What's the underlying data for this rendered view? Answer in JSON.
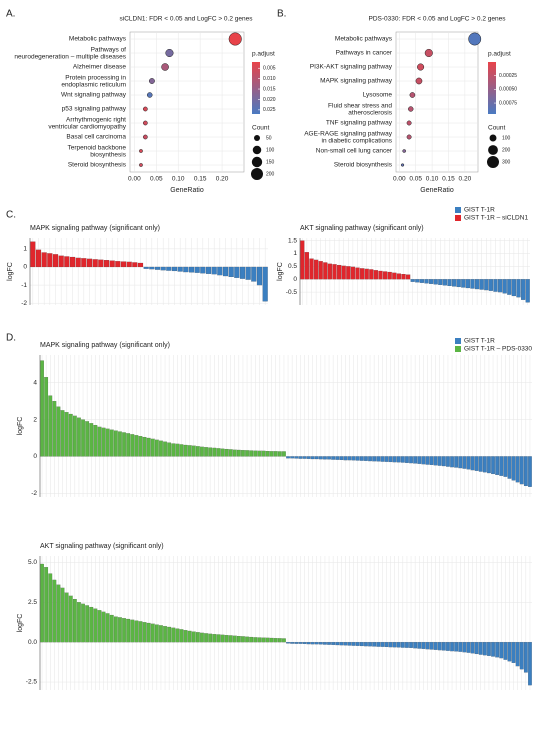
{
  "chart_data": [
    {
      "type": "dot",
      "panel_label": "A.",
      "title": "siCLDN1: FDR < 0.05 and LogFC > 0.2 genes",
      "categories": [
        "Metabolic pathways",
        "Pathways of\nneurodegeneration – multiple diseases",
        "Alzheimer disease",
        "Protein processing in\nendoplasmic reticulum",
        "Wnt signaling pathway",
        "p53 signaling pathway",
        "Arrhythmogenic right\nventricular cardiomyopathy",
        "Basal cell carcinoma",
        "Terpenoid backbone\nbiosynthesis",
        "Steroid biosynthesis"
      ],
      "values": [
        0.23,
        0.08,
        0.07,
        0.04,
        0.035,
        0.025,
        0.025,
        0.025,
        0.015,
        0.015
      ],
      "count": [
        220,
        80,
        70,
        40,
        35,
        25,
        25,
        25,
        15,
        15
      ],
      "p_adjust": [
        0.002,
        0.02,
        0.012,
        0.018,
        0.025,
        0.005,
        0.006,
        0.007,
        0.005,
        0.006
      ],
      "x_label": "GeneRatio",
      "xlim": [
        -0.01,
        0.25
      ],
      "xticks": [
        {
          "value": 0,
          "label": "0.00"
        },
        0.05,
        {
          "value": 0.1,
          "label": "0.10"
        },
        0.15,
        {
          "value": 0.2,
          "label": "0.20"
        }
      ],
      "color_title": "p.adjust",
      "plim": [
        0.002,
        0.027
      ],
      "low_color": "#e8434a",
      "high_color": "#4a7ac2",
      "pticks": [
        0.005,
        {
          "value": 0.01,
          "label": "0.010"
        },
        0.015,
        {
          "value": 0.02,
          "label": "0.020"
        },
        0.025
      ],
      "size_title": "Count",
      "size_ticks": [
        50,
        100,
        150,
        200
      ]
    },
    {
      "type": "dot",
      "panel_label": "B.",
      "title": "PDS-0330: FDR < 0.05 and LogFC > 0.2 genes",
      "categories": [
        "Metabolic pathways",
        "Pathways in cancer",
        "PI3K-AKT signaling pathway",
        "MAPK signaling pathway",
        "Lysosome",
        "Fluid shear stress and\natherosclerosis",
        "TNF signaling pathway",
        "AGE-RAGE signaling pathway\nin diabetic complications",
        "Non-small cell lung cancer",
        "Steroid biosynthesis"
      ],
      "values": [
        0.23,
        0.09,
        0.065,
        0.06,
        0.04,
        0.035,
        0.03,
        0.03,
        0.015,
        0.01
      ],
      "count": [
        320,
        120,
        90,
        80,
        55,
        50,
        40,
        40,
        20,
        15
      ],
      "p_adjust": [
        0.0009,
        0.0002,
        0.00015,
        0.0002,
        0.0003,
        0.0003,
        0.00025,
        0.0003,
        0.0006,
        0.0008
      ],
      "x_label": "GeneRatio",
      "xlim": [
        -0.01,
        0.24
      ],
      "xticks": [
        {
          "value": 0,
          "label": "0.00"
        },
        0.05,
        {
          "value": 0.1,
          "label": "0.10"
        },
        0.15,
        {
          "value": 0.2,
          "label": "0.20"
        }
      ],
      "color_title": "p.adjust",
      "plim": [
        0,
        0.00095
      ],
      "low_color": "#e8434a",
      "high_color": "#4a7ac2",
      "pticks": [
        0.00025,
        {
          "value": 0.0005,
          "label": "0.00050"
        },
        0.00075
      ],
      "size_title": "Count",
      "size_ticks": [
        100,
        200,
        300
      ]
    },
    {
      "type": "bar",
      "panel_label": "C.",
      "title": "MAPK signaling pathway (significant only)",
      "y_label": "logFC",
      "up_color": "#e0262c",
      "down_color": "#3b7fc0",
      "values": [
        1.4,
        0.95,
        0.8,
        0.75,
        0.7,
        0.62,
        0.58,
        0.55,
        0.5,
        0.48,
        0.45,
        0.42,
        0.4,
        0.38,
        0.35,
        0.32,
        0.3,
        0.28,
        0.25,
        0.22,
        -0.1,
        -0.12,
        -0.15,
        -0.18,
        -0.2,
        -0.22,
        -0.25,
        -0.28,
        -0.3,
        -0.32,
        -0.35,
        -0.38,
        -0.4,
        -0.45,
        -0.5,
        -0.55,
        -0.6,
        -0.65,
        -0.7,
        -0.8,
        -1.0,
        -1.9
      ],
      "ylim": [
        -2.1,
        1.6
      ],
      "yticks": [
        -2,
        -1,
        0,
        1
      ],
      "grid": true
    },
    {
      "type": "bar",
      "title": "AKT signaling pathway (significant only)",
      "y_label": "logFC",
      "up_color": "#e0262c",
      "down_color": "#3b7fc0",
      "legend": [
        {
          "name": "GIST T-1R",
          "color": "#3b7fc0"
        },
        {
          "name": "GIST T-1R – siCLDN1",
          "color": "#e0262c"
        }
      ],
      "values": [
        1.5,
        1.05,
        0.8,
        0.75,
        0.7,
        0.65,
        0.6,
        0.58,
        0.55,
        0.52,
        0.5,
        0.48,
        0.45,
        0.42,
        0.4,
        0.38,
        0.35,
        0.32,
        0.3,
        0.28,
        0.25,
        0.22,
        0.2,
        0.18,
        -0.1,
        -0.12,
        -0.14,
        -0.16,
        -0.18,
        -0.2,
        -0.22,
        -0.24,
        -0.26,
        -0.28,
        -0.3,
        -0.32,
        -0.34,
        -0.36,
        -0.38,
        -0.4,
        -0.42,
        -0.45,
        -0.48,
        -0.5,
        -0.55,
        -0.6,
        -0.65,
        -0.7,
        -0.8,
        -0.9
      ],
      "ylim": [
        -1,
        1.6
      ],
      "yticks": [
        -0.5,
        0,
        0.5,
        1,
        1.5
      ],
      "grid": true
    },
    {
      "type": "bar",
      "panel_label": "D.",
      "title": "MAPK signaling pathway (significant only)",
      "y_label": "logFC",
      "up_color": "#5bb544",
      "down_color": "#3b7fc0",
      "legend": [
        {
          "name": "GIST T-1R",
          "color": "#3b7fc0"
        },
        {
          "name": "GIST T-1R – PDS-0330",
          "color": "#5bb544"
        }
      ],
      "values": [
        5.2,
        4.3,
        3.3,
        3.0,
        2.7,
        2.5,
        2.4,
        2.3,
        2.2,
        2.1,
        2.0,
        1.9,
        1.8,
        1.7,
        1.6,
        1.55,
        1.5,
        1.45,
        1.4,
        1.35,
        1.3,
        1.25,
        1.2,
        1.15,
        1.1,
        1.05,
        1.0,
        0.95,
        0.9,
        0.85,
        0.8,
        0.75,
        0.7,
        0.68,
        0.65,
        0.62,
        0.6,
        0.58,
        0.55,
        0.52,
        0.5,
        0.48,
        0.46,
        0.44,
        0.42,
        0.4,
        0.38,
        0.36,
        0.35,
        0.34,
        0.33,
        0.32,
        0.31,
        0.3,
        0.3,
        0.29,
        0.28,
        0.28,
        0.27,
        0.27,
        -0.1,
        -0.1,
        -0.11,
        -0.12,
        -0.12,
        -0.13,
        -0.14,
        -0.14,
        -0.15,
        -0.16,
        -0.16,
        -0.17,
        -0.18,
        -0.19,
        -0.2,
        -0.2,
        -0.21,
        -0.22,
        -0.23,
        -0.24,
        -0.25,
        -0.26,
        -0.27,
        -0.28,
        -0.29,
        -0.3,
        -0.31,
        -0.32,
        -0.33,
        -0.35,
        -0.36,
        -0.38,
        -0.4,
        -0.42,
        -0.44,
        -0.46,
        -0.48,
        -0.5,
        -0.52,
        -0.55,
        -0.58,
        -0.6,
        -0.63,
        -0.66,
        -0.7,
        -0.74,
        -0.78,
        -0.82,
        -0.86,
        -0.9,
        -0.95,
        -1.0,
        -1.05,
        -1.1,
        -1.2,
        -1.3,
        -1.4,
        -1.5,
        -1.6,
        -1.65
      ],
      "ylim": [
        -2.2,
        5.5
      ],
      "yticks": [
        -2,
        0,
        2,
        4
      ],
      "grid": true
    },
    {
      "type": "bar",
      "title": "AKT signaling pathway (significant only)",
      "y_label": "logFC",
      "up_color": "#5bb544",
      "down_color": "#3b7fc0",
      "values": [
        4.9,
        4.7,
        4.3,
        3.9,
        3.6,
        3.4,
        3.1,
        2.9,
        2.7,
        2.5,
        2.4,
        2.3,
        2.2,
        2.1,
        2.0,
        1.9,
        1.8,
        1.7,
        1.6,
        1.55,
        1.5,
        1.45,
        1.4,
        1.35,
        1.3,
        1.25,
        1.2,
        1.15,
        1.1,
        1.05,
        1.0,
        0.95,
        0.9,
        0.85,
        0.8,
        0.75,
        0.7,
        0.66,
        0.62,
        0.58,
        0.55,
        0.52,
        0.5,
        0.48,
        0.46,
        0.44,
        0.42,
        0.4,
        0.38,
        0.36,
        0.34,
        0.32,
        0.3,
        0.29,
        0.28,
        0.27,
        0.26,
        0.25,
        0.24,
        0.23,
        -0.08,
        -0.09,
        -0.1,
        -0.1,
        -0.11,
        -0.12,
        -0.13,
        -0.13,
        -0.14,
        -0.15,
        -0.16,
        -0.17,
        -0.18,
        -0.19,
        -0.2,
        -0.21,
        -0.22,
        -0.23,
        -0.24,
        -0.25,
        -0.26,
        -0.27,
        -0.28,
        -0.29,
        -0.3,
        -0.31,
        -0.32,
        -0.33,
        -0.34,
        -0.35,
        -0.36,
        -0.38,
        -0.4,
        -0.42,
        -0.44,
        -0.46,
        -0.48,
        -0.5,
        -0.52,
        -0.54,
        -0.56,
        -0.58,
        -0.6,
        -0.63,
        -0.66,
        -0.7,
        -0.74,
        -0.78,
        -0.82,
        -0.86,
        -0.9,
        -0.95,
        -1.0,
        -1.1,
        -1.2,
        -1.3,
        -1.5,
        -1.7,
        -1.9,
        -2.7
      ],
      "ylim": [
        -3,
        5.4
      ],
      "yticks": [
        -2.5,
        {
          "value": 0,
          "label": "0.0"
        },
        2.5,
        {
          "value": 5,
          "label": "5.0"
        }
      ],
      "grid": true
    }
  ]
}
